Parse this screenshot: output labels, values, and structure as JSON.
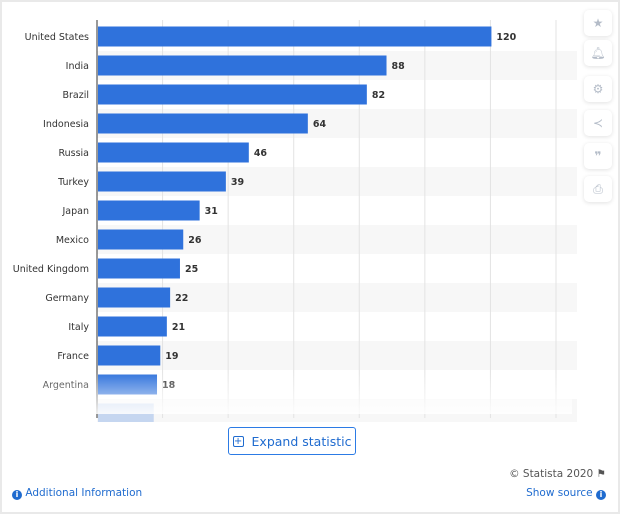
{
  "chart_data": {
    "type": "bar",
    "orientation": "horizontal",
    "categories": [
      "United States",
      "India",
      "Brazil",
      "Indonesia",
      "Russia",
      "Turkey",
      "Japan",
      "Mexico",
      "United Kingdom",
      "Germany",
      "Italy",
      "France",
      "Argentina"
    ],
    "values": [
      120,
      88,
      82,
      64,
      46,
      39,
      31,
      26,
      25,
      22,
      21,
      19,
      18
    ],
    "xlim": [
      0,
      140
    ],
    "grid_step": 20,
    "grid": true,
    "data_labels": true,
    "bar_color": "#2f72dc",
    "truncated": true
  },
  "sidebar": {
    "icons": [
      "star-icon",
      "bell-icon",
      "gear-icon",
      "share-icon",
      "quote-icon",
      "print-icon"
    ]
  },
  "expand_label": "Expand statistic",
  "credit": "© Statista 2020",
  "additional_info": "Additional Information",
  "show_source": "Show source"
}
